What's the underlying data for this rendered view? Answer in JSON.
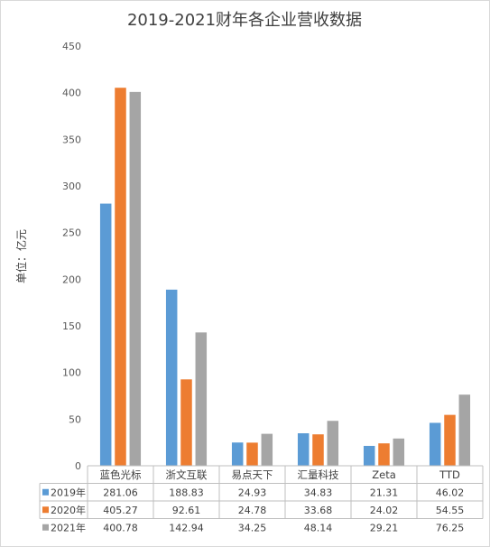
{
  "chart_data": {
    "type": "bar",
    "title": "2019-2021财年各企业营收数据",
    "ylabel": "单位：亿元",
    "ylim": [
      0,
      450
    ],
    "yticks": [
      0,
      50,
      100,
      150,
      200,
      250,
      300,
      350,
      400,
      450
    ],
    "grid": false,
    "legend": "data-table-left",
    "categories": [
      "蓝色光标",
      "浙文互联",
      "易点天下",
      "汇量科技",
      "Zeta",
      "TTD"
    ],
    "series": [
      {
        "name": "2019年",
        "color": "#5b9bd5",
        "values": [
          281.06,
          188.83,
          24.93,
          34.83,
          21.31,
          46.02
        ]
      },
      {
        "name": "2020年",
        "color": "#ed7d31",
        "values": [
          405.27,
          92.61,
          24.78,
          33.68,
          24.02,
          54.55
        ]
      },
      {
        "name": "2021年",
        "color": "#a5a5a5",
        "values": [
          400.78,
          142.94,
          34.25,
          48.14,
          29.21,
          76.25
        ]
      }
    ]
  }
}
